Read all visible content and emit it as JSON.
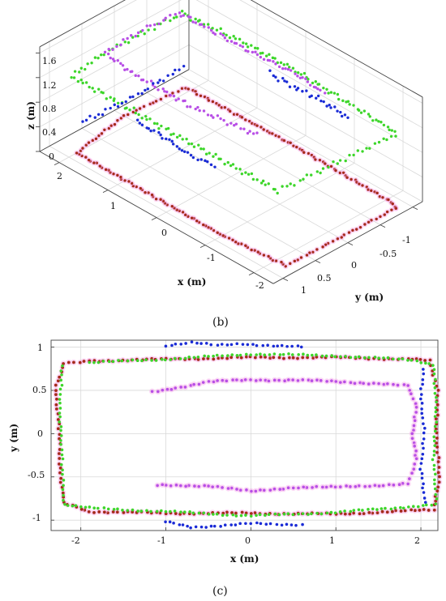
{
  "panels": {
    "b_label": "(b)",
    "c_label": "(c)"
  },
  "colors": {
    "red": "#a52a1a",
    "green": "#3dd62a",
    "magenta": "#b84fe6",
    "blue": "#1a2bd6",
    "halo": "#f6a6e8"
  },
  "chart_data": [
    {
      "type": "scatter",
      "panel": "(b)",
      "projection": "3d",
      "xlabel": "x (m)",
      "ylabel": "y (m)",
      "zlabel": "z (m)",
      "xticks": [
        "2",
        "1",
        "0",
        "-1",
        "-2"
      ],
      "yticks": [
        "-1",
        "-0.5",
        "0",
        "0.5",
        "1"
      ],
      "zticks": [
        "1.6",
        "1.2",
        "0.8",
        "0.4",
        "0"
      ],
      "xlim": [
        -2.4,
        2.4
      ],
      "ylim": [
        -1.15,
        1.15
      ],
      "zlim": [
        0,
        1.7
      ],
      "grid": true,
      "series": [
        {
          "color": "red",
          "z": 0.0,
          "path": [
            [
              -2.25,
              -0.85
            ],
            [
              -2.2,
              0.8
            ],
            [
              -1.0,
              0.88
            ],
            [
              0,
              0.88
            ],
            [
              1.0,
              0.88
            ],
            [
              2.0,
              0.88
            ],
            [
              2.2,
              0.0
            ],
            [
              2.1,
              -0.88
            ],
            [
              0,
              -0.92
            ],
            [
              -2.1,
              -0.9
            ],
            [
              -2.25,
              -0.85
            ]
          ]
        },
        {
          "color": "green",
          "z": 1.2,
          "path": [
            [
              -2.25,
              -0.85
            ],
            [
              -2.1,
              0.85
            ],
            [
              0,
              0.88
            ],
            [
              2.1,
              0.88
            ],
            [
              2.2,
              0.3
            ],
            [
              2.15,
              -0.85
            ],
            [
              1.0,
              -0.93
            ],
            [
              0,
              -0.95
            ],
            [
              -2.2,
              -0.88
            ]
          ]
        },
        {
          "color": "magenta",
          "z": 1.5,
          "path": [
            [
              -1.2,
              0.5
            ],
            [
              0,
              0.62
            ],
            [
              1.2,
              0.62
            ],
            [
              1.85,
              0.55
            ],
            [
              1.9,
              0.0
            ],
            [
              1.85,
              -0.58
            ],
            [
              0.5,
              -0.6
            ],
            [
              -0.5,
              -0.65
            ],
            [
              -1.1,
              -0.6
            ]
          ]
        },
        {
          "color": "blue",
          "z": 1.2,
          "path": [
            [
              -1.0,
              1.0
            ],
            [
              -0.5,
              1.05
            ],
            [
              0,
              1.0
            ],
            [
              0.6,
              1.0
            ]
          ]
        },
        {
          "color": "blue",
          "z": 0.8,
          "path": [
            [
              -1.0,
              -1.05
            ],
            [
              -0.3,
              -1.08
            ],
            [
              0,
              -1.05
            ],
            [
              0.6,
              -1.05
            ]
          ]
        },
        {
          "color": "blue",
          "z": 0.4,
          "path": [
            [
              2.05,
              0.75
            ],
            [
              2.0,
              0.0
            ],
            [
              2.05,
              -0.8
            ]
          ]
        }
      ]
    },
    {
      "type": "scatter",
      "panel": "(c)",
      "xlabel": "x (m)",
      "ylabel": "y (m)",
      "xticks": [
        -2,
        -1,
        0,
        1,
        2
      ],
      "yticks": [
        1,
        0.5,
        0,
        -0.5,
        -1
      ],
      "xlim": [
        -2.35,
        2.2
      ],
      "ylim": [
        -1.12,
        1.08
      ],
      "grid": true,
      "series": [
        {
          "color": "red",
          "path": [
            [
              -1.9,
              0.84
            ],
            [
              -1.0,
              0.86
            ],
            [
              0,
              0.88
            ],
            [
              1.0,
              0.88
            ],
            [
              1.9,
              0.86
            ],
            [
              2.1,
              0.84
            ],
            [
              2.2,
              0.5
            ],
            [
              2.18,
              0.0
            ],
            [
              2.22,
              -0.5
            ],
            [
              2.15,
              -0.88
            ],
            [
              1.0,
              -0.93
            ],
            [
              0,
              -0.92
            ],
            [
              -1.0,
              -0.92
            ],
            [
              -1.9,
              -0.9
            ],
            [
              -2.2,
              -0.8
            ],
            [
              -2.25,
              -0.4
            ],
            [
              -2.25,
              0.0
            ],
            [
              -2.3,
              0.5
            ],
            [
              -2.2,
              0.82
            ],
            [
              -1.9,
              0.84
            ]
          ]
        },
        {
          "color": "green",
          "path": [
            [
              -1.9,
              0.82
            ],
            [
              -1.0,
              0.86
            ],
            [
              0,
              0.92
            ],
            [
              1.0,
              0.9
            ],
            [
              1.9,
              0.85
            ],
            [
              2.15,
              0.8
            ],
            [
              2.18,
              0.3
            ],
            [
              2.15,
              -0.3
            ],
            [
              2.18,
              -0.82
            ],
            [
              1.0,
              -0.91
            ],
            [
              0,
              -0.95
            ],
            [
              -1.0,
              -0.9
            ],
            [
              -1.9,
              -0.86
            ],
            [
              -2.2,
              -0.82
            ],
            [
              -2.22,
              -0.3
            ],
            [
              -2.25,
              0.3
            ],
            [
              -2.22,
              0.78
            ]
          ]
        },
        {
          "color": "magenta",
          "path": [
            [
              -1.15,
              0.48
            ],
            [
              -0.5,
              0.6
            ],
            [
              0,
              0.62
            ],
            [
              0.5,
              0.62
            ],
            [
              1.0,
              0.6
            ],
            [
              1.5,
              0.58
            ],
            [
              1.85,
              0.55
            ],
            [
              1.95,
              0.3
            ],
            [
              1.9,
              0.0
            ],
            [
              1.95,
              -0.3
            ],
            [
              1.85,
              -0.58
            ],
            [
              1.0,
              -0.62
            ],
            [
              0.5,
              -0.62
            ],
            [
              0,
              -0.67
            ],
            [
              -0.5,
              -0.6
            ],
            [
              -1.1,
              -0.6
            ]
          ]
        },
        {
          "color": "blue",
          "path": [
            [
              -1.0,
              1.02
            ],
            [
              -0.7,
              1.05
            ],
            [
              -0.4,
              1.02
            ],
            [
              -0.1,
              1.04
            ],
            [
              0.2,
              1.02
            ],
            [
              0.6,
              1.0
            ]
          ]
        },
        {
          "color": "blue",
          "path": [
            [
              -1.0,
              -1.02
            ],
            [
              -0.7,
              -1.08
            ],
            [
              -0.3,
              -1.06
            ],
            [
              0,
              -1.04
            ],
            [
              0.3,
              -1.05
            ],
            [
              0.6,
              -1.05
            ]
          ]
        },
        {
          "color": "blue",
          "path": [
            [
              2.03,
              0.75
            ],
            [
              2.0,
              0.4
            ],
            [
              2.04,
              0.0
            ],
            [
              2.0,
              -0.4
            ],
            [
              2.05,
              -0.8
            ]
          ]
        }
      ]
    }
  ]
}
